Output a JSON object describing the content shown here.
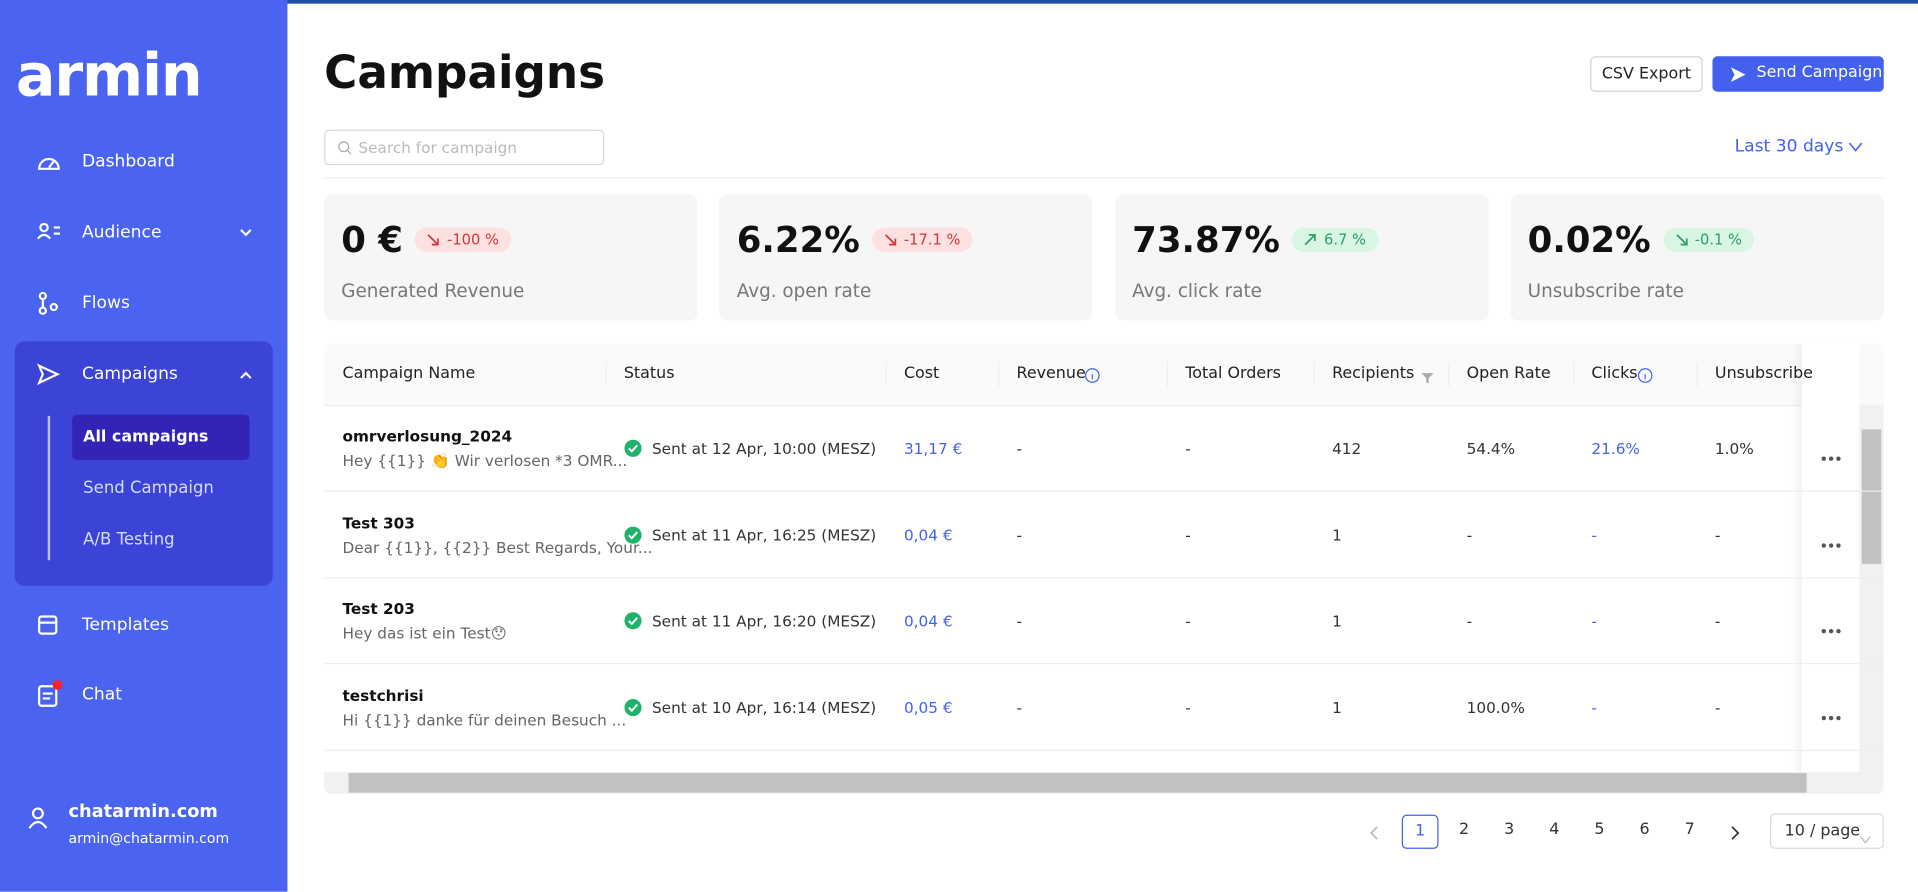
{
  "sidebar": {
    "logo": "armin",
    "nav": [
      {
        "label": "Dashboard"
      },
      {
        "label": "Audience"
      },
      {
        "label": "Flows"
      },
      {
        "label": "Campaigns",
        "children": [
          "All campaigns",
          "Send Campaign",
          "A/B Testing"
        ]
      },
      {
        "label": "Templates"
      },
      {
        "label": "Chat"
      }
    ],
    "user": {
      "name": "chatarmin.com",
      "email": "armin@chatarmin.com"
    }
  },
  "header": {
    "title": "Campaigns",
    "csv_button": "CSV Export",
    "send_button": "Send Campaign",
    "search_placeholder": "Search for campaign",
    "date_filter": "Last 30 days"
  },
  "stats": [
    {
      "value": "0 €",
      "change": "-100 %",
      "trend": "down",
      "tone": "bad",
      "label": "Generated Revenue"
    },
    {
      "value": "6.22%",
      "change": "-17.1 %",
      "trend": "down",
      "tone": "bad",
      "label": "Avg. open rate"
    },
    {
      "value": "73.87%",
      "change": "6.7 %",
      "trend": "up",
      "tone": "good",
      "label": "Avg. click rate"
    },
    {
      "value": "0.02%",
      "change": "-0.1 %",
      "trend": "down",
      "tone": "good",
      "label": "Unsubscribe rate"
    }
  ],
  "table": {
    "columns": [
      "Campaign Name",
      "Status",
      "Cost",
      "Revenue",
      "Total Orders",
      "Recipients",
      "Open Rate",
      "Clicks",
      "Unsubscribe"
    ],
    "rows": [
      {
        "name": "omrverlosung_2024",
        "preview": "Hey {{1}} 👏 Wir verlosen *3 OMR...",
        "status": "Sent at 12 Apr, 10:00 (MESZ)",
        "cost": "31,17 €",
        "revenue": "-",
        "orders": "-",
        "recipients": 412,
        "open_rate": "54.4%",
        "clicks": "21.6%",
        "unsubscribe": "1.0%"
      },
      {
        "name": "Test 303",
        "preview": "Dear {{1}}, {{2}} Best Regards, Your...",
        "status": "Sent at 11 Apr, 16:25 (MESZ)",
        "cost": "0,04 €",
        "revenue": "-",
        "orders": "-",
        "recipients": 1,
        "open_rate": "-",
        "clicks": "-",
        "unsubscribe": "-"
      },
      {
        "name": "Test 203",
        "preview": "Hey das ist ein Test😯",
        "status": "Sent at 11 Apr, 16:20 (MESZ)",
        "cost": "0,04 €",
        "revenue": "-",
        "orders": "-",
        "recipients": 1,
        "open_rate": "-",
        "clicks": "-",
        "unsubscribe": "-"
      },
      {
        "name": "testchrisi",
        "preview": "Hi {{1}} danke für deinen Besuch ...",
        "status": "Sent at 10 Apr, 16:14 (MESZ)",
        "cost": "0,05 €",
        "revenue": "-",
        "orders": "-",
        "recipients": 1,
        "open_rate": "100.0%",
        "clicks": "-",
        "unsubscribe": "-"
      }
    ]
  },
  "pagination": {
    "pages": [
      1,
      2,
      3,
      4,
      5,
      6,
      7
    ],
    "current": 1,
    "page_size": "10 / page"
  }
}
